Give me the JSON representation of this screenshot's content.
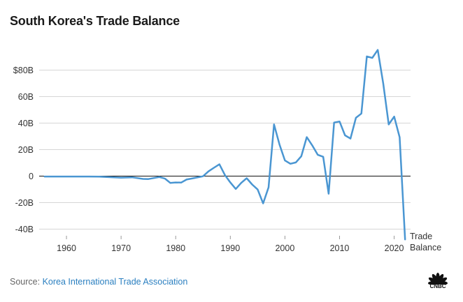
{
  "title": "South Korea's Trade Balance",
  "source": {
    "prefix": "Source: ",
    "name": "Korea International Trade Association"
  },
  "logo": {
    "text": "CNBC"
  },
  "chart_data": {
    "type": "line",
    "title": "South Korea's Trade Balance",
    "xlabel": "",
    "ylabel": "",
    "xlim": [
      1955,
      2023
    ],
    "ylim": [
      -45,
      95
    ],
    "grid": true,
    "yticks": [
      {
        "value": 80,
        "label": "$80B"
      },
      {
        "value": 60,
        "label": "60B"
      },
      {
        "value": 40,
        "label": "40B"
      },
      {
        "value": 20,
        "label": "20B"
      },
      {
        "value": 0,
        "label": "0"
      },
      {
        "value": -20,
        "label": "-20B"
      },
      {
        "value": -40,
        "label": "-40B"
      }
    ],
    "xticks": [
      1960,
      1970,
      1980,
      1990,
      2000,
      2010,
      2020
    ],
    "color": "#4a96d2",
    "series": [
      {
        "name": "Trade Balance",
        "x": [
          1956,
          1958,
          1960,
          1962,
          1964,
          1966,
          1968,
          1970,
          1972,
          1974,
          1975,
          1977,
          1978,
          1979,
          1980,
          1981,
          1982,
          1983,
          1985,
          1986,
          1987,
          1988,
          1989,
          1990,
          1991,
          1992,
          1993,
          1994,
          1995,
          1996,
          1997,
          1998,
          1999,
          2000,
          2001,
          2002,
          2003,
          2004,
          2005,
          2006,
          2007,
          2008,
          2009,
          2010,
          2011,
          2012,
          2013,
          2014,
          2015,
          2016,
          2017,
          2018,
          2019,
          2020,
          2021,
          2022
        ],
        "values": [
          -0.3,
          -0.3,
          -0.3,
          -0.3,
          -0.3,
          -0.4,
          -0.8,
          -1.2,
          -0.9,
          -2.1,
          -2.2,
          -0.7,
          -1.8,
          -5.1,
          -4.8,
          -4.9,
          -2.6,
          -1.8,
          -0.1,
          3.6,
          6.3,
          8.9,
          0.9,
          -4.8,
          -9.7,
          -5.1,
          -1.6,
          -6.3,
          -10.1,
          -20.6,
          -8.5,
          39.0,
          23.9,
          11.8,
          9.3,
          10.3,
          15.0,
          29.4,
          23.2,
          16.1,
          14.6,
          -13.3,
          40.4,
          41.2,
          30.8,
          28.3,
          44.0,
          47.2,
          90.3,
          89.2,
          95.2,
          69.7,
          39.0,
          44.9,
          29.3,
          -47.8
        ]
      }
    ]
  }
}
